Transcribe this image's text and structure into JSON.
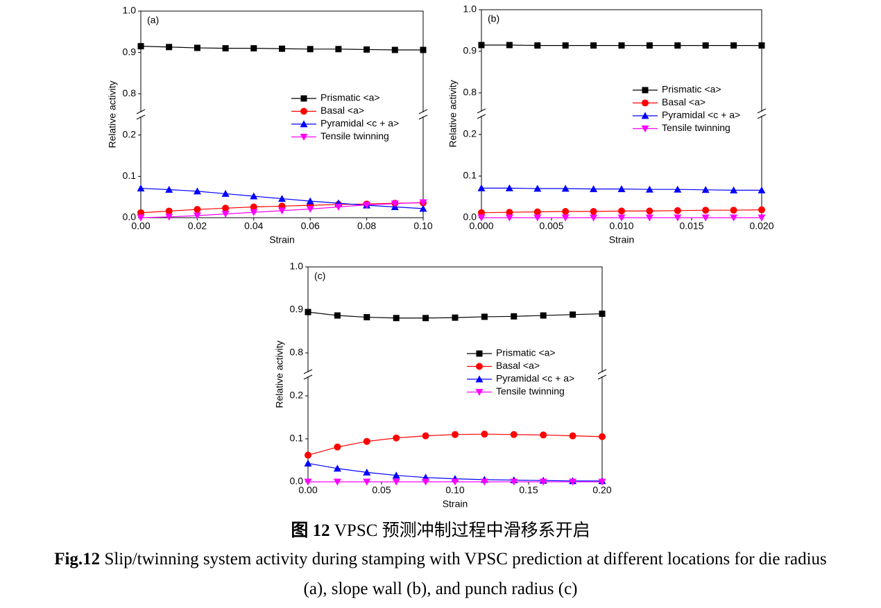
{
  "chart_data": [
    {
      "type": "line",
      "panel_label": "(a)",
      "xlabel": "Strain",
      "ylabel": "Relative activity",
      "x": [
        0,
        0.01,
        0.02,
        0.03,
        0.04,
        0.05,
        0.06,
        0.07,
        0.08,
        0.09,
        0.1
      ],
      "xlim": [
        0,
        0.1
      ],
      "xticks": [
        {
          "value": 0,
          "label": "0.00"
        },
        0.02,
        0.04,
        0.06,
        0.08,
        {
          "value": 0.1,
          "label": "0.10"
        }
      ],
      "ylim": [
        0,
        1
      ],
      "ybreak": [
        0.25,
        0.75
      ],
      "yticks": [
        {
          "value": 0,
          "label": "0.0"
        },
        0.1,
        0.2,
        0.8,
        0.9,
        {
          "value": 1,
          "label": "1.0"
        }
      ],
      "legend": "right",
      "series": [
        {
          "name": "Prismatic <a>",
          "color": "#000000",
          "marker": "square",
          "values": [
            0.915,
            0.913,
            0.911,
            0.91,
            0.91,
            0.909,
            0.908,
            0.908,
            0.907,
            0.906,
            0.906
          ]
        },
        {
          "name": "Basal <a>",
          "color": "#ff0000",
          "marker": "circle",
          "values": [
            0.012,
            0.016,
            0.02,
            0.023,
            0.026,
            0.028,
            0.03,
            0.032,
            0.033,
            0.035,
            0.036
          ]
        },
        {
          "name": "Pyramidal <c + a>",
          "color": "#0000ff",
          "marker": "triangle-up",
          "values": [
            0.071,
            0.068,
            0.064,
            0.058,
            0.052,
            0.046,
            0.04,
            0.035,
            0.03,
            0.026,
            0.022
          ]
        },
        {
          "name": "Tensile twinning",
          "color": "#ff00ff",
          "marker": "triangle-down",
          "values": [
            0,
            0.002,
            0.005,
            0.009,
            0.013,
            0.017,
            0.021,
            0.026,
            0.031,
            0.034,
            0.037
          ]
        }
      ]
    },
    {
      "type": "line",
      "panel_label": "(b)",
      "xlabel": "Strain",
      "ylabel": "Relative activity",
      "x": [
        0,
        0.002,
        0.004,
        0.006,
        0.008,
        0.01,
        0.012,
        0.014,
        0.016,
        0.018,
        0.02
      ],
      "xlim": [
        0,
        0.02
      ],
      "xticks": [
        {
          "value": 0,
          "label": "0.000"
        },
        0.005,
        {
          "value": 0.01,
          "label": "0.010"
        },
        0.015,
        {
          "value": 0.02,
          "label": "0.020"
        }
      ],
      "ylim": [
        0,
        1
      ],
      "ybreak": [
        0.25,
        0.75
      ],
      "yticks": [
        {
          "value": 0,
          "label": "0.0"
        },
        0.1,
        0.2,
        0.8,
        0.9,
        {
          "value": 1,
          "label": "1.0"
        }
      ],
      "legend": "right",
      "series": [
        {
          "name": "Prismatic <a>",
          "color": "#000000",
          "marker": "square",
          "values": [
            0.915,
            0.915,
            0.914,
            0.914,
            0.914,
            0.914,
            0.914,
            0.914,
            0.914,
            0.914,
            0.914
          ]
        },
        {
          "name": "Basal <a>",
          "color": "#ff0000",
          "marker": "circle",
          "values": [
            0.012,
            0.013,
            0.014,
            0.015,
            0.015,
            0.016,
            0.016,
            0.017,
            0.018,
            0.018,
            0.019
          ]
        },
        {
          "name": "Pyramidal <c + a>",
          "color": "#0000ff",
          "marker": "triangle-up",
          "values": [
            0.071,
            0.071,
            0.07,
            0.07,
            0.069,
            0.069,
            0.068,
            0.068,
            0.067,
            0.066,
            0.066
          ]
        },
        {
          "name": "Tensile twinning",
          "color": "#ff00ff",
          "marker": "triangle-down",
          "values": [
            0,
            0,
            0,
            0,
            0,
            0,
            0,
            0,
            0,
            0,
            0
          ]
        }
      ]
    },
    {
      "type": "line",
      "panel_label": "(c)",
      "xlabel": "Strain",
      "ylabel": "Relative activity",
      "x": [
        0,
        0.02,
        0.04,
        0.06,
        0.08,
        0.1,
        0.12,
        0.14,
        0.16,
        0.18,
        0.2
      ],
      "xlim": [
        0,
        0.2
      ],
      "xticks": [
        {
          "value": 0,
          "label": "0.00"
        },
        0.05,
        {
          "value": 0.1,
          "label": "0.10"
        },
        0.15,
        {
          "value": 0.2,
          "label": "0.20"
        }
      ],
      "ylim": [
        0,
        1
      ],
      "ybreak": [
        0.25,
        0.75
      ],
      "yticks": [
        {
          "value": 0,
          "label": "0.0"
        },
        0.1,
        0.2,
        0.8,
        0.9,
        {
          "value": 1,
          "label": "1.0"
        }
      ],
      "legend": "right",
      "series": [
        {
          "name": "Prismatic <a>",
          "color": "#000000",
          "marker": "square",
          "values": [
            0.895,
            0.887,
            0.883,
            0.881,
            0.881,
            0.882,
            0.884,
            0.885,
            0.887,
            0.889,
            0.891
          ]
        },
        {
          "name": "Basal <a>",
          "color": "#ff0000",
          "marker": "circle",
          "values": [
            0.062,
            0.081,
            0.094,
            0.102,
            0.107,
            0.11,
            0.111,
            0.11,
            0.109,
            0.107,
            0.105
          ]
        },
        {
          "name": "Pyramidal <c + a>",
          "color": "#0000ff",
          "marker": "triangle-up",
          "values": [
            0.043,
            0.031,
            0.022,
            0.015,
            0.01,
            0.007,
            0.005,
            0.004,
            0.003,
            0.002,
            0.002
          ]
        },
        {
          "name": "Tensile twinning",
          "color": "#ff00ff",
          "marker": "triangle-down",
          "values": [
            0,
            0,
            0,
            0,
            0,
            0,
            0,
            0,
            0,
            0,
            0
          ]
        }
      ]
    }
  ],
  "caption": {
    "cn_label": "图 12",
    "cn_text": "VPSC 预测冲制过程中滑移系开启",
    "en_label": "Fig.12",
    "en_lines": [
      "Slip/twinning system activity during stamping with VPSC prediction at different locations for die radius",
      "(a), slope wall (b), and punch radius (c)"
    ]
  }
}
